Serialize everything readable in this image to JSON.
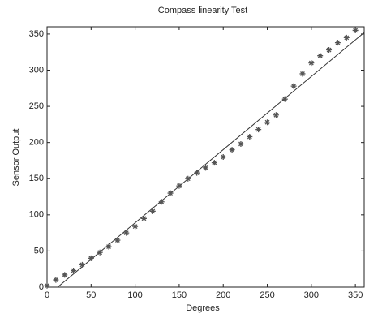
{
  "chart_data": {
    "type": "scatter",
    "title": "Compass linearity Test",
    "xlabel": "Degrees",
    "ylabel": "Sensor Output",
    "x": [
      0,
      10,
      20,
      30,
      40,
      50,
      60,
      70,
      80,
      90,
      100,
      110,
      120,
      130,
      140,
      150,
      160,
      170,
      180,
      190,
      200,
      210,
      220,
      230,
      240,
      250,
      260,
      270,
      280,
      290,
      300,
      310,
      320,
      330,
      340,
      350
    ],
    "values": [
      2,
      10,
      17,
      23,
      31,
      40,
      48,
      56,
      65,
      75,
      84,
      95,
      105,
      118,
      130,
      140,
      150,
      158,
      165,
      172,
      180,
      190,
      198,
      208,
      218,
      228,
      238,
      260,
      278,
      295,
      310,
      320,
      328,
      338,
      345,
      355
    ],
    "color": "#555555",
    "fit": {
      "x": [
        12,
        360
      ],
      "values": [
        0,
        352
      ],
      "color": "#333333"
    },
    "xlim": [
      0,
      360
    ],
    "ylim": [
      0,
      360
    ],
    "xticks": [
      0,
      50,
      100,
      150,
      200,
      250,
      300,
      350
    ],
    "yticks": [
      0,
      50,
      100,
      150,
      200,
      250,
      300,
      350
    ]
  }
}
